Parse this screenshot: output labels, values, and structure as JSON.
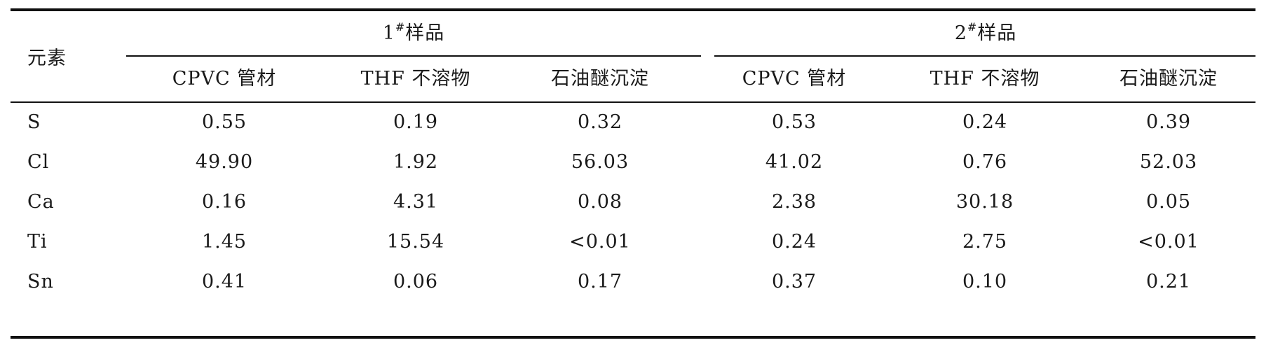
{
  "table": {
    "row_header": "元素",
    "groups": [
      {
        "label_num": "1",
        "label_sup": "#",
        "label_text": "样品"
      },
      {
        "label_num": "2",
        "label_sup": "#",
        "label_text": "样品"
      }
    ],
    "subheaders": [
      "CPVC 管材",
      "THF 不溶物",
      "石油醚沉淀",
      "CPVC 管材",
      "THF 不溶物",
      "石油醚沉淀"
    ],
    "rows": [
      {
        "element": "S",
        "values": [
          "0.55",
          "0.19",
          "0.32",
          "0.53",
          "0.24",
          "0.39"
        ]
      },
      {
        "element": "Cl",
        "values": [
          "49.90",
          "1.92",
          "56.03",
          "41.02",
          "0.76",
          "52.03"
        ]
      },
      {
        "element": "Ca",
        "values": [
          "0.16",
          "4.31",
          "0.08",
          "2.38",
          "30.18",
          "0.05"
        ]
      },
      {
        "element": "Ti",
        "values": [
          "1.45",
          "15.54",
          "<0.01",
          "0.24",
          "2.75",
          "<0.01"
        ]
      },
      {
        "element": "Sn",
        "values": [
          "0.41",
          "0.06",
          "0.17",
          "0.37",
          "0.10",
          "0.21"
        ]
      }
    ]
  }
}
